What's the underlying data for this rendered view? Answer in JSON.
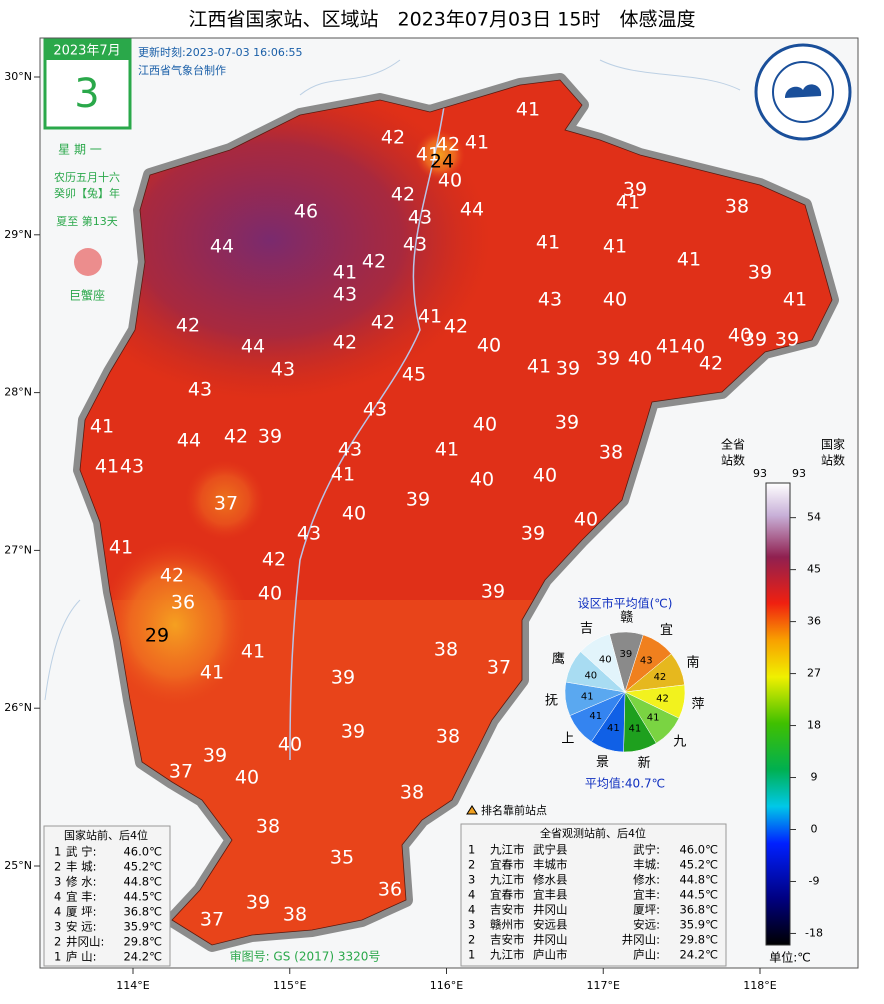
{
  "header": {
    "title": "江西省国家站、区域站　2023年07月03日 15时　体感温度",
    "update_time": "更新时刻:2023-07-03 16:06:55",
    "producer": "江西省气象台制作"
  },
  "calendar": {
    "month": "2023年7月",
    "day": "3",
    "weekday": "星 期 一",
    "lunar": "农历五月十六",
    "year_name": "癸卯【兔】年",
    "solar_term": "夏至 第13天",
    "zodiac": "巨蟹座"
  },
  "map": {
    "lat_ticks": [
      {
        "value": 30,
        "label": "30°N"
      },
      {
        "value": 29,
        "label": "29°N"
      },
      {
        "value": 28,
        "label": "28°N"
      },
      {
        "value": 27,
        "label": "27°N"
      },
      {
        "value": 26,
        "label": "26°N"
      },
      {
        "value": 25,
        "label": "25°N"
      }
    ],
    "lon_ticks": [
      {
        "value": 114,
        "label": "114°E"
      },
      {
        "value": 115,
        "label": "115°E"
      },
      {
        "value": 116,
        "label": "116°E"
      },
      {
        "value": 117,
        "label": "117°E"
      },
      {
        "value": 118,
        "label": "118°E"
      }
    ],
    "values": [
      41,
      42,
      41,
      42,
      41,
      24,
      40,
      42,
      39,
      41,
      38,
      46,
      43,
      44,
      44,
      43,
      41,
      41,
      41,
      39,
      41,
      42,
      43,
      41,
      40,
      42,
      43,
      42,
      41,
      42,
      44,
      42,
      40,
      41,
      40,
      40,
      39,
      39,
      42,
      43,
      45,
      41,
      39,
      39,
      40,
      43,
      43,
      41,
      44,
      42,
      39,
      40,
      39,
      38,
      41,
      43,
      43,
      41,
      41,
      40,
      40,
      37,
      39,
      40,
      40,
      43,
      39,
      41,
      42,
      42,
      40,
      39,
      36,
      29,
      38,
      41,
      37,
      41,
      39,
      38,
      39,
      40,
      39,
      37,
      40,
      38,
      38,
      35,
      36,
      39,
      38,
      37
    ],
    "legend_marker": "排名靠前站点",
    "approval": "审图号: GS (2017) 3320号"
  },
  "colorbar": {
    "lim": [
      -20,
      60
    ],
    "ticks": [
      54,
      45,
      36,
      27,
      18,
      9,
      0,
      -9,
      -18
    ],
    "province_header": [
      "全省",
      "站数"
    ],
    "national_header": [
      "国家",
      "站数"
    ],
    "province_count": 93,
    "national_count": 93,
    "unit": "单位:℃"
  },
  "pie": {
    "title": "设区市平均值(℃)",
    "mean": "平均值:40.7℃",
    "labels": [
      "赣",
      "宜",
      "南",
      "萍",
      "九",
      "新",
      "景",
      "上",
      "抚",
      "鹰",
      "吉"
    ],
    "values": [
      39,
      43,
      42,
      42,
      41,
      41,
      41,
      41,
      41,
      40,
      40
    ],
    "colors": [
      "#8a8a8a",
      "#f0801e",
      "#e6b81e",
      "#f2f21e",
      "#7ad442",
      "#1ea01e",
      "#1060e6",
      "#3484f0",
      "#5aa8f0",
      "#a8dcf2",
      "#e2f4fb"
    ]
  },
  "table_national": {
    "title": "国家站前、后4位",
    "rows": [
      [
        "1",
        "武 宁:",
        "46.0℃"
      ],
      [
        "2",
        "丰 城:",
        "45.2℃"
      ],
      [
        "3",
        "修 水:",
        "44.8℃"
      ],
      [
        "4",
        "宜 丰:",
        "44.5℃"
      ],
      [
        "4",
        "厦 坪:",
        "36.8℃"
      ],
      [
        "3",
        "安 远:",
        "35.9℃"
      ],
      [
        "2",
        "井冈山:",
        "29.8℃"
      ],
      [
        "1",
        "庐 山:",
        "24.2℃"
      ]
    ]
  },
  "table_province": {
    "title": "全省观测站前、后4位",
    "rows": [
      [
        "1",
        "九江市",
        "武宁县",
        "武宁:",
        "46.0℃"
      ],
      [
        "2",
        "宜春市",
        "丰城市",
        "丰城:",
        "45.2℃"
      ],
      [
        "3",
        "九江市",
        "修水县",
        "修水:",
        "44.8℃"
      ],
      [
        "4",
        "宜春市",
        "宜丰县",
        "宜丰:",
        "44.5℃"
      ],
      [
        "4",
        "吉安市",
        "井冈山",
        "厦坪:",
        "36.8℃"
      ],
      [
        "3",
        "赣州市",
        "安远县",
        "安远:",
        "35.9℃"
      ],
      [
        "2",
        "吉安市",
        "井冈山",
        "井冈山:",
        "29.8℃"
      ],
      [
        "1",
        "九江市",
        "庐山市",
        "庐山:",
        "24.2℃"
      ]
    ]
  }
}
